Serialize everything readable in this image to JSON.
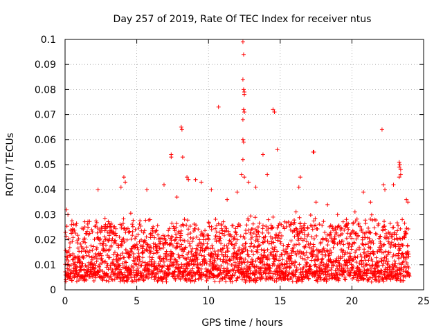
{
  "chart_data": {
    "type": "scatter",
    "title": "Day 257 of 2019, Rate Of TEC Index for receiver ntus",
    "xlabel": "GPS time / hours",
    "ylabel": "ROTI / TECUs",
    "xlim": [
      0,
      25
    ],
    "ylim": [
      0,
      0.1
    ],
    "xticks": [
      "0",
      "5",
      "10",
      "15",
      "20",
      "25"
    ],
    "yticks": [
      "0",
      "0.01",
      "0.02",
      "0.03",
      "0.04",
      "0.05",
      "0.06",
      "0.07",
      "0.08",
      "0.09",
      "0.1"
    ],
    "grid": true,
    "marker": "+",
    "color": "#ff0000",
    "series": [
      {
        "name": "ROTI",
        "description": "dense cloud of ROTI samples, mostly 0.003-0.025 TECU, sampled from 0 to 24 h",
        "bulk_range": [
          0.003,
          0.025
        ],
        "outliers": [
          {
            "x": 0.1,
            "y": 0.032
          },
          {
            "x": 0.2,
            "y": 0.03
          },
          {
            "x": 2.3,
            "y": 0.04
          },
          {
            "x": 3.9,
            "y": 0.041
          },
          {
            "x": 4.1,
            "y": 0.045
          },
          {
            "x": 4.2,
            "y": 0.043
          },
          {
            "x": 5.7,
            "y": 0.04
          },
          {
            "x": 6.9,
            "y": 0.042
          },
          {
            "x": 7.4,
            "y": 0.054
          },
          {
            "x": 7.4,
            "y": 0.053
          },
          {
            "x": 7.8,
            "y": 0.037
          },
          {
            "x": 8.1,
            "y": 0.065
          },
          {
            "x": 8.15,
            "y": 0.064
          },
          {
            "x": 8.2,
            "y": 0.053
          },
          {
            "x": 8.5,
            "y": 0.045
          },
          {
            "x": 8.6,
            "y": 0.044
          },
          {
            "x": 9.1,
            "y": 0.044
          },
          {
            "x": 9.5,
            "y": 0.043
          },
          {
            "x": 10.2,
            "y": 0.04
          },
          {
            "x": 10.7,
            "y": 0.073
          },
          {
            "x": 11.3,
            "y": 0.036
          },
          {
            "x": 12.0,
            "y": 0.039
          },
          {
            "x": 12.3,
            "y": 0.046
          },
          {
            "x": 12.4,
            "y": 0.099
          },
          {
            "x": 12.45,
            "y": 0.094
          },
          {
            "x": 12.4,
            "y": 0.084
          },
          {
            "x": 12.45,
            "y": 0.08
          },
          {
            "x": 12.5,
            "y": 0.079
          },
          {
            "x": 12.5,
            "y": 0.078
          },
          {
            "x": 12.45,
            "y": 0.072
          },
          {
            "x": 12.5,
            "y": 0.071
          },
          {
            "x": 12.4,
            "y": 0.068
          },
          {
            "x": 12.4,
            "y": 0.06
          },
          {
            "x": 12.45,
            "y": 0.059
          },
          {
            "x": 12.4,
            "y": 0.052
          },
          {
            "x": 12.5,
            "y": 0.045
          },
          {
            "x": 12.8,
            "y": 0.043
          },
          {
            "x": 13.3,
            "y": 0.041
          },
          {
            "x": 13.8,
            "y": 0.054
          },
          {
            "x": 14.1,
            "y": 0.046
          },
          {
            "x": 14.5,
            "y": 0.072
          },
          {
            "x": 14.6,
            "y": 0.071
          },
          {
            "x": 14.8,
            "y": 0.056
          },
          {
            "x": 16.3,
            "y": 0.041
          },
          {
            "x": 16.4,
            "y": 0.045
          },
          {
            "x": 17.3,
            "y": 0.055
          },
          {
            "x": 17.35,
            "y": 0.055
          },
          {
            "x": 17.5,
            "y": 0.035
          },
          {
            "x": 18.3,
            "y": 0.034
          },
          {
            "x": 19.0,
            "y": 0.03
          },
          {
            "x": 20.8,
            "y": 0.039
          },
          {
            "x": 21.3,
            "y": 0.035
          },
          {
            "x": 22.1,
            "y": 0.064
          },
          {
            "x": 22.2,
            "y": 0.042
          },
          {
            "x": 22.3,
            "y": 0.04
          },
          {
            "x": 22.9,
            "y": 0.042
          },
          {
            "x": 23.3,
            "y": 0.051
          },
          {
            "x": 23.35,
            "y": 0.05
          },
          {
            "x": 23.3,
            "y": 0.049
          },
          {
            "x": 23.4,
            "y": 0.048
          },
          {
            "x": 23.4,
            "y": 0.046
          },
          {
            "x": 23.3,
            "y": 0.045
          },
          {
            "x": 23.8,
            "y": 0.036
          },
          {
            "x": 23.9,
            "y": 0.035
          }
        ]
      }
    ]
  }
}
